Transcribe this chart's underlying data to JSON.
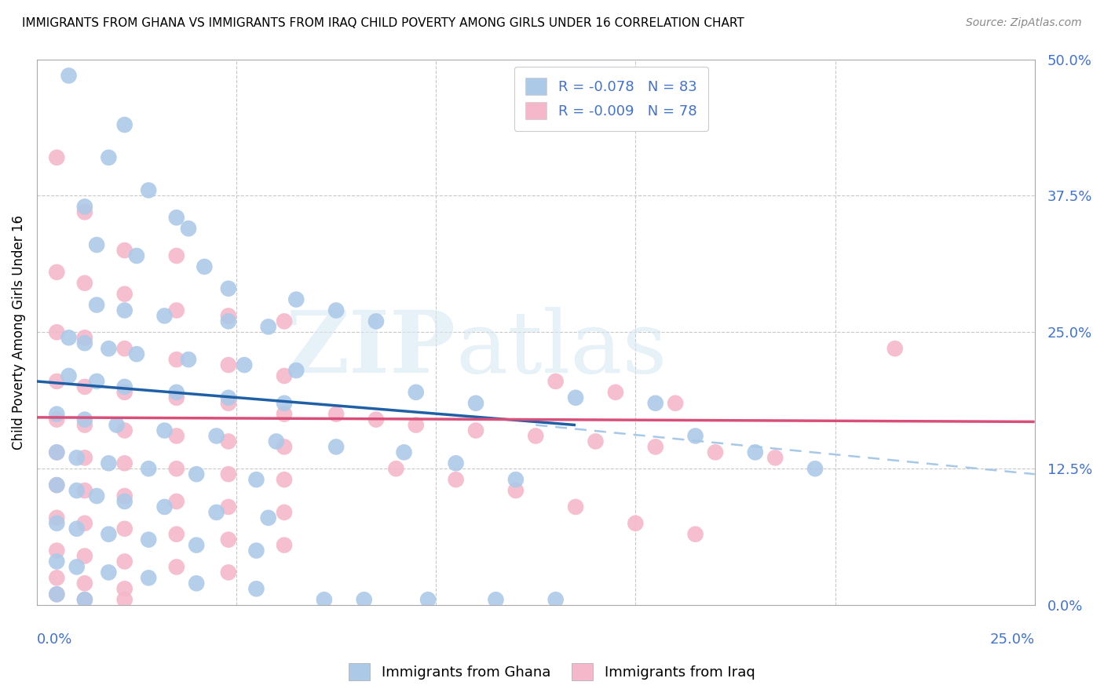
{
  "title": "IMMIGRANTS FROM GHANA VS IMMIGRANTS FROM IRAQ CHILD POVERTY AMONG GIRLS UNDER 16 CORRELATION CHART",
  "source": "Source: ZipAtlas.com",
  "ylabel": "Child Poverty Among Girls Under 16",
  "yticks": [
    "0.0%",
    "12.5%",
    "25.0%",
    "37.5%",
    "50.0%"
  ],
  "ytick_vals": [
    0.0,
    0.125,
    0.25,
    0.375,
    0.5
  ],
  "xlim": [
    0.0,
    0.25
  ],
  "ylim": [
    0.0,
    0.5
  ],
  "ghana_color": "#adc9e8",
  "ghana_color_edge": "#5b9bd5",
  "iraq_color": "#f4b8ca",
  "iraq_color_edge": "#d9748a",
  "ghana_line_color": "#1f5fa6",
  "iraq_line_color": "#d94f7a",
  "dashed_color": "#a8c8e8",
  "ghana_R": -0.078,
  "ghana_N": 83,
  "iraq_R": -0.009,
  "iraq_N": 78,
  "ghana_scatter": [
    [
      0.008,
      0.485
    ],
    [
      0.022,
      0.44
    ],
    [
      0.018,
      0.41
    ],
    [
      0.028,
      0.38
    ],
    [
      0.012,
      0.365
    ],
    [
      0.035,
      0.355
    ],
    [
      0.038,
      0.345
    ],
    [
      0.015,
      0.33
    ],
    [
      0.025,
      0.32
    ],
    [
      0.042,
      0.31
    ],
    [
      0.048,
      0.29
    ],
    [
      0.015,
      0.275
    ],
    [
      0.022,
      0.27
    ],
    [
      0.032,
      0.265
    ],
    [
      0.048,
      0.26
    ],
    [
      0.058,
      0.255
    ],
    [
      0.008,
      0.245
    ],
    [
      0.012,
      0.24
    ],
    [
      0.018,
      0.235
    ],
    [
      0.025,
      0.23
    ],
    [
      0.038,
      0.225
    ],
    [
      0.052,
      0.22
    ],
    [
      0.065,
      0.215
    ],
    [
      0.008,
      0.21
    ],
    [
      0.015,
      0.205
    ],
    [
      0.022,
      0.2
    ],
    [
      0.035,
      0.195
    ],
    [
      0.048,
      0.19
    ],
    [
      0.062,
      0.185
    ],
    [
      0.005,
      0.175
    ],
    [
      0.012,
      0.17
    ],
    [
      0.02,
      0.165
    ],
    [
      0.032,
      0.16
    ],
    [
      0.045,
      0.155
    ],
    [
      0.06,
      0.15
    ],
    [
      0.075,
      0.145
    ],
    [
      0.005,
      0.14
    ],
    [
      0.01,
      0.135
    ],
    [
      0.018,
      0.13
    ],
    [
      0.028,
      0.125
    ],
    [
      0.04,
      0.12
    ],
    [
      0.055,
      0.115
    ],
    [
      0.005,
      0.11
    ],
    [
      0.01,
      0.105
    ],
    [
      0.015,
      0.1
    ],
    [
      0.022,
      0.095
    ],
    [
      0.032,
      0.09
    ],
    [
      0.045,
      0.085
    ],
    [
      0.058,
      0.08
    ],
    [
      0.005,
      0.075
    ],
    [
      0.01,
      0.07
    ],
    [
      0.018,
      0.065
    ],
    [
      0.028,
      0.06
    ],
    [
      0.04,
      0.055
    ],
    [
      0.055,
      0.05
    ],
    [
      0.005,
      0.04
    ],
    [
      0.01,
      0.035
    ],
    [
      0.018,
      0.03
    ],
    [
      0.028,
      0.025
    ],
    [
      0.04,
      0.02
    ],
    [
      0.055,
      0.015
    ],
    [
      0.005,
      0.01
    ],
    [
      0.012,
      0.005
    ],
    [
      0.072,
      0.005
    ],
    [
      0.082,
      0.005
    ],
    [
      0.098,
      0.005
    ],
    [
      0.115,
      0.005
    ],
    [
      0.13,
      0.005
    ],
    [
      0.095,
      0.195
    ],
    [
      0.11,
      0.185
    ],
    [
      0.135,
      0.19
    ],
    [
      0.155,
      0.185
    ],
    [
      0.065,
      0.28
    ],
    [
      0.075,
      0.27
    ],
    [
      0.085,
      0.26
    ],
    [
      0.092,
      0.14
    ],
    [
      0.105,
      0.13
    ],
    [
      0.12,
      0.115
    ],
    [
      0.165,
      0.155
    ],
    [
      0.18,
      0.14
    ],
    [
      0.195,
      0.125
    ]
  ],
  "iraq_scatter": [
    [
      0.005,
      0.41
    ],
    [
      0.012,
      0.36
    ],
    [
      0.022,
      0.325
    ],
    [
      0.035,
      0.32
    ],
    [
      0.005,
      0.305
    ],
    [
      0.012,
      0.295
    ],
    [
      0.022,
      0.285
    ],
    [
      0.035,
      0.27
    ],
    [
      0.048,
      0.265
    ],
    [
      0.062,
      0.26
    ],
    [
      0.005,
      0.25
    ],
    [
      0.012,
      0.245
    ],
    [
      0.022,
      0.235
    ],
    [
      0.035,
      0.225
    ],
    [
      0.048,
      0.22
    ],
    [
      0.062,
      0.21
    ],
    [
      0.005,
      0.205
    ],
    [
      0.012,
      0.2
    ],
    [
      0.022,
      0.195
    ],
    [
      0.035,
      0.19
    ],
    [
      0.048,
      0.185
    ],
    [
      0.062,
      0.175
    ],
    [
      0.005,
      0.17
    ],
    [
      0.012,
      0.165
    ],
    [
      0.022,
      0.16
    ],
    [
      0.035,
      0.155
    ],
    [
      0.048,
      0.15
    ],
    [
      0.062,
      0.145
    ],
    [
      0.005,
      0.14
    ],
    [
      0.012,
      0.135
    ],
    [
      0.022,
      0.13
    ],
    [
      0.035,
      0.125
    ],
    [
      0.048,
      0.12
    ],
    [
      0.062,
      0.115
    ],
    [
      0.005,
      0.11
    ],
    [
      0.012,
      0.105
    ],
    [
      0.022,
      0.1
    ],
    [
      0.035,
      0.095
    ],
    [
      0.048,
      0.09
    ],
    [
      0.062,
      0.085
    ],
    [
      0.005,
      0.08
    ],
    [
      0.012,
      0.075
    ],
    [
      0.022,
      0.07
    ],
    [
      0.035,
      0.065
    ],
    [
      0.048,
      0.06
    ],
    [
      0.062,
      0.055
    ],
    [
      0.005,
      0.05
    ],
    [
      0.012,
      0.045
    ],
    [
      0.022,
      0.04
    ],
    [
      0.035,
      0.035
    ],
    [
      0.048,
      0.03
    ],
    [
      0.005,
      0.025
    ],
    [
      0.012,
      0.02
    ],
    [
      0.022,
      0.015
    ],
    [
      0.005,
      0.01
    ],
    [
      0.012,
      0.005
    ],
    [
      0.022,
      0.005
    ],
    [
      0.075,
      0.175
    ],
    [
      0.085,
      0.17
    ],
    [
      0.095,
      0.165
    ],
    [
      0.11,
      0.16
    ],
    [
      0.125,
      0.155
    ],
    [
      0.14,
      0.15
    ],
    [
      0.155,
      0.145
    ],
    [
      0.17,
      0.14
    ],
    [
      0.185,
      0.135
    ],
    [
      0.13,
      0.205
    ],
    [
      0.145,
      0.195
    ],
    [
      0.16,
      0.185
    ],
    [
      0.215,
      0.235
    ],
    [
      0.09,
      0.125
    ],
    [
      0.105,
      0.115
    ],
    [
      0.12,
      0.105
    ],
    [
      0.135,
      0.09
    ],
    [
      0.15,
      0.075
    ],
    [
      0.165,
      0.065
    ]
  ],
  "ghana_line": {
    "x0": 0.0,
    "y0": 0.205,
    "x1": 0.135,
    "y1": 0.165
  },
  "iraq_line": {
    "x0": 0.0,
    "y0": 0.172,
    "x1": 0.25,
    "y1": 0.168
  },
  "dashed_line": {
    "x0": 0.125,
    "y0": 0.165,
    "x1": 0.25,
    "y1": 0.12
  }
}
